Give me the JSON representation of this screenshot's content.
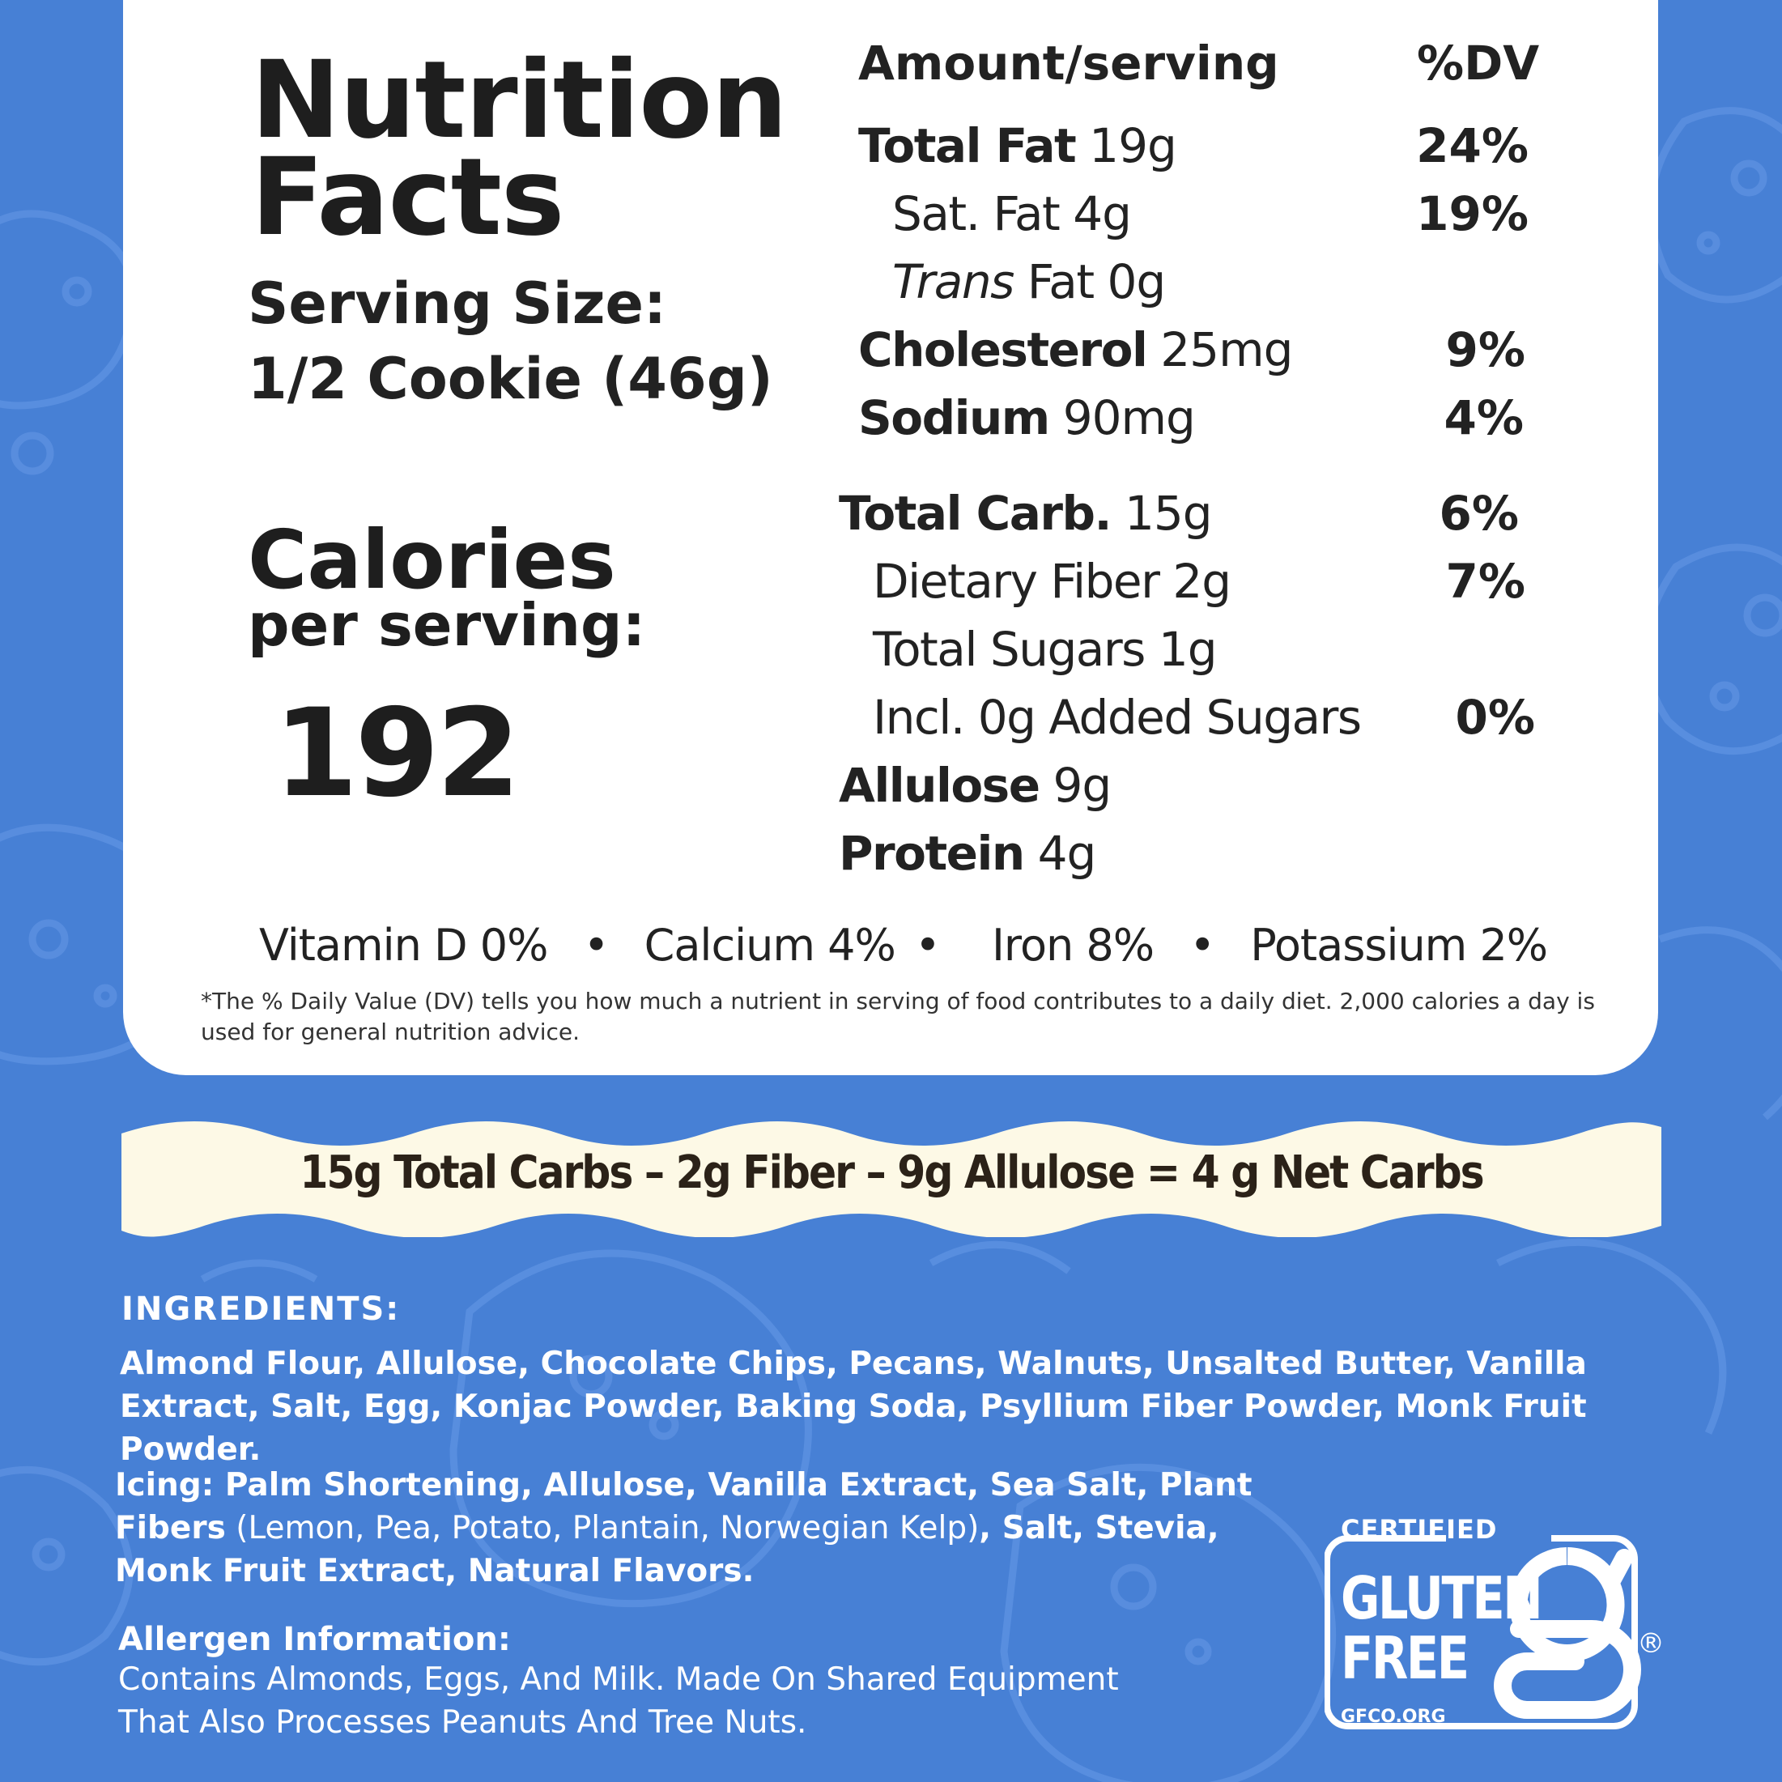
{
  "nutrition": {
    "title_line1": "Nutrition",
    "title_line2": "Facts",
    "serving_label": "Serving Size:",
    "serving_value": "1/2 Cookie (46g)",
    "calories_label": "Calories",
    "calories_sub": "per serving:",
    "calories_value": "192",
    "header_amount": "Amount/serving",
    "header_dv": "%DV",
    "rows": [
      {
        "name": "Total Fat",
        "value": "19g",
        "dv": "24%"
      },
      {
        "name": "Sat. Fat",
        "value": "4g",
        "dv": "19%"
      },
      {
        "name_italic": "Trans",
        "name": "Fat",
        "value": "0g",
        "dv": ""
      },
      {
        "name": "Cholesterol",
        "value": "25mg",
        "dv": "9%"
      },
      {
        "name": "Sodium",
        "value": "90mg",
        "dv": "4%"
      },
      {
        "name": "Total Carb.",
        "value": "15g",
        "dv": "6%"
      },
      {
        "name": "Dietary Fiber",
        "value": "2g",
        "dv": "7%"
      },
      {
        "name": "Total Sugars",
        "value": "1g",
        "dv": ""
      },
      {
        "name": "Incl. 0g Added Sugars",
        "value": "",
        "dv": "0%"
      },
      {
        "name": "Allulose",
        "value": "9g",
        "dv": ""
      },
      {
        "name": "Protein",
        "value": "4g",
        "dv": ""
      }
    ],
    "vitamins": {
      "vitamin_d": "Vitamin D 0%",
      "calcium": "Calcium 4%",
      "iron": "Iron 8%",
      "potassium": "Potassium 2%",
      "separator": "•"
    },
    "footnote": "*The % Daily Value (DV) tells you how much a nutrient in serving of food contributes to a daily diet. 2,000 calories a day is used for general nutrition advice."
  },
  "net_carbs": "15g  Total Carbs  –  2g Fiber – 9g Allulose = 4 g Net Carbs",
  "ingredients": {
    "heading": "INGREDIENTS:",
    "list": "Almond Flour, Allulose, Chocolate Chips, Pecans, Walnuts, Unsalted Butter, Vanilla Extract, Salt, Egg, Konjac Powder, Baking Soda, Psyllium Fiber Powder, Monk Fruit Powder.",
    "icing_part1": "Icing: Palm Shortening, Allulose, Vanilla Extract, Sea Salt, Plant Fibers",
    "icing_part2": " (Lemon, Pea, Potato, Plantain, Norwegian Kelp)",
    "icing_part3": ", Salt, Stevia, Monk Fruit Extract, Natural Flavors."
  },
  "allergen": {
    "heading": "Allergen Information:",
    "text": "Contains Almonds, Eggs, And Milk. Made On Shared Equipment That Also Processes Peanuts And Tree Nuts."
  },
  "certification": {
    "certified": "CERTIFIED",
    "gluten": "GLUTEN",
    "free": "FREE",
    "registered": "®",
    "site": "GFCO.ORG"
  },
  "colors": {
    "background": "#4780d5",
    "card": "#ffffff",
    "banner": "#fdf9e6",
    "text_dark": "#222222"
  }
}
